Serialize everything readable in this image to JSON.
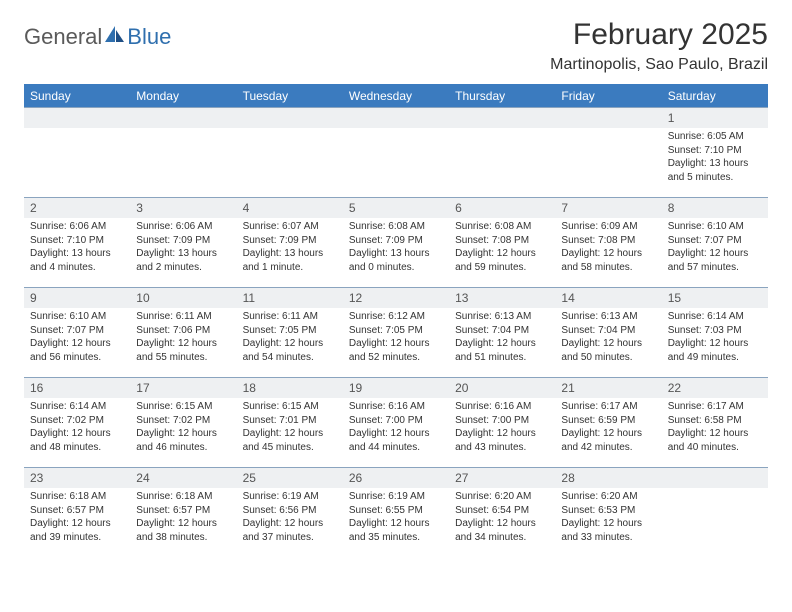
{
  "logo": {
    "word1": "General",
    "word2": "Blue"
  },
  "title": "February 2025",
  "location": "Martinopolis, Sao Paulo, Brazil",
  "colors": {
    "header_bg": "#3b7bbf",
    "header_text": "#ffffff",
    "daynum_bg": "#eef0f2",
    "rule": "#8aa4bf",
    "logo_gray": "#5a5a5a",
    "logo_blue": "#2f6fae"
  },
  "typography": {
    "title_fontsize": 30,
    "location_fontsize": 16,
    "dayheader_fontsize": 12,
    "body_fontsize": 10
  },
  "calendar": {
    "type": "table",
    "day_headers": [
      "Sunday",
      "Monday",
      "Tuesday",
      "Wednesday",
      "Thursday",
      "Friday",
      "Saturday"
    ],
    "weeks": [
      [
        null,
        null,
        null,
        null,
        null,
        null,
        {
          "n": "1",
          "sunrise": "6:05 AM",
          "sunset": "7:10 PM",
          "daylight": "13 hours and 5 minutes."
        }
      ],
      [
        {
          "n": "2",
          "sunrise": "6:06 AM",
          "sunset": "7:10 PM",
          "daylight": "13 hours and 4 minutes."
        },
        {
          "n": "3",
          "sunrise": "6:06 AM",
          "sunset": "7:09 PM",
          "daylight": "13 hours and 2 minutes."
        },
        {
          "n": "4",
          "sunrise": "6:07 AM",
          "sunset": "7:09 PM",
          "daylight": "13 hours and 1 minute."
        },
        {
          "n": "5",
          "sunrise": "6:08 AM",
          "sunset": "7:09 PM",
          "daylight": "13 hours and 0 minutes."
        },
        {
          "n": "6",
          "sunrise": "6:08 AM",
          "sunset": "7:08 PM",
          "daylight": "12 hours and 59 minutes."
        },
        {
          "n": "7",
          "sunrise": "6:09 AM",
          "sunset": "7:08 PM",
          "daylight": "12 hours and 58 minutes."
        },
        {
          "n": "8",
          "sunrise": "6:10 AM",
          "sunset": "7:07 PM",
          "daylight": "12 hours and 57 minutes."
        }
      ],
      [
        {
          "n": "9",
          "sunrise": "6:10 AM",
          "sunset": "7:07 PM",
          "daylight": "12 hours and 56 minutes."
        },
        {
          "n": "10",
          "sunrise": "6:11 AM",
          "sunset": "7:06 PM",
          "daylight": "12 hours and 55 minutes."
        },
        {
          "n": "11",
          "sunrise": "6:11 AM",
          "sunset": "7:05 PM",
          "daylight": "12 hours and 54 minutes."
        },
        {
          "n": "12",
          "sunrise": "6:12 AM",
          "sunset": "7:05 PM",
          "daylight": "12 hours and 52 minutes."
        },
        {
          "n": "13",
          "sunrise": "6:13 AM",
          "sunset": "7:04 PM",
          "daylight": "12 hours and 51 minutes."
        },
        {
          "n": "14",
          "sunrise": "6:13 AM",
          "sunset": "7:04 PM",
          "daylight": "12 hours and 50 minutes."
        },
        {
          "n": "15",
          "sunrise": "6:14 AM",
          "sunset": "7:03 PM",
          "daylight": "12 hours and 49 minutes."
        }
      ],
      [
        {
          "n": "16",
          "sunrise": "6:14 AM",
          "sunset": "7:02 PM",
          "daylight": "12 hours and 48 minutes."
        },
        {
          "n": "17",
          "sunrise": "6:15 AM",
          "sunset": "7:02 PM",
          "daylight": "12 hours and 46 minutes."
        },
        {
          "n": "18",
          "sunrise": "6:15 AM",
          "sunset": "7:01 PM",
          "daylight": "12 hours and 45 minutes."
        },
        {
          "n": "19",
          "sunrise": "6:16 AM",
          "sunset": "7:00 PM",
          "daylight": "12 hours and 44 minutes."
        },
        {
          "n": "20",
          "sunrise": "6:16 AM",
          "sunset": "7:00 PM",
          "daylight": "12 hours and 43 minutes."
        },
        {
          "n": "21",
          "sunrise": "6:17 AM",
          "sunset": "6:59 PM",
          "daylight": "12 hours and 42 minutes."
        },
        {
          "n": "22",
          "sunrise": "6:17 AM",
          "sunset": "6:58 PM",
          "daylight": "12 hours and 40 minutes."
        }
      ],
      [
        {
          "n": "23",
          "sunrise": "6:18 AM",
          "sunset": "6:57 PM",
          "daylight": "12 hours and 39 minutes."
        },
        {
          "n": "24",
          "sunrise": "6:18 AM",
          "sunset": "6:57 PM",
          "daylight": "12 hours and 38 minutes."
        },
        {
          "n": "25",
          "sunrise": "6:19 AM",
          "sunset": "6:56 PM",
          "daylight": "12 hours and 37 minutes."
        },
        {
          "n": "26",
          "sunrise": "6:19 AM",
          "sunset": "6:55 PM",
          "daylight": "12 hours and 35 minutes."
        },
        {
          "n": "27",
          "sunrise": "6:20 AM",
          "sunset": "6:54 PM",
          "daylight": "12 hours and 34 minutes."
        },
        {
          "n": "28",
          "sunrise": "6:20 AM",
          "sunset": "6:53 PM",
          "daylight": "12 hours and 33 minutes."
        },
        null
      ]
    ]
  },
  "labels": {
    "sunrise_prefix": "Sunrise: ",
    "sunset_prefix": "Sunset: ",
    "daylight_prefix": "Daylight: "
  }
}
